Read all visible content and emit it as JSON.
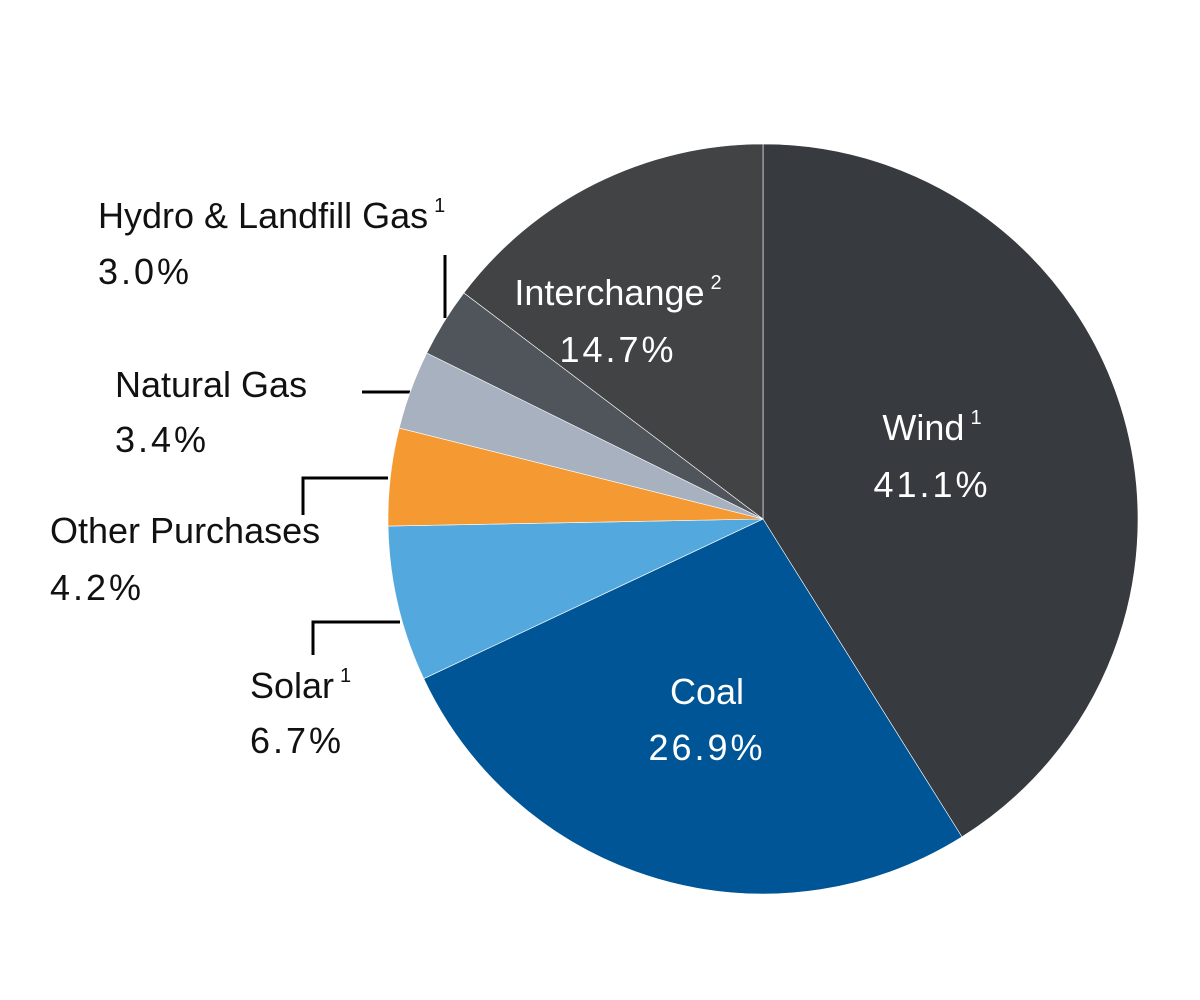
{
  "chart_data": {
    "type": "pie",
    "categories": [
      "Wind",
      "Coal",
      "Solar",
      "Other Purchases",
      "Natural Gas",
      "Hydro & Landfill Gas",
      "Interchange"
    ],
    "category_notes": [
      "1",
      null,
      "1",
      null,
      null,
      "1",
      "2"
    ],
    "values": [
      41.1,
      26.9,
      6.7,
      4.2,
      3.4,
      3.0,
      14.7
    ],
    "value_labels": [
      "41.1%",
      "26.9%",
      "6.7%",
      "4.2%",
      "3.4%",
      "3.0%",
      "14.7%"
    ],
    "colors": [
      "#373a3e",
      "#005596",
      "#53a9dd",
      "#f59a33",
      "#a7b1bf",
      "#50545b",
      "#424345"
    ]
  }
}
